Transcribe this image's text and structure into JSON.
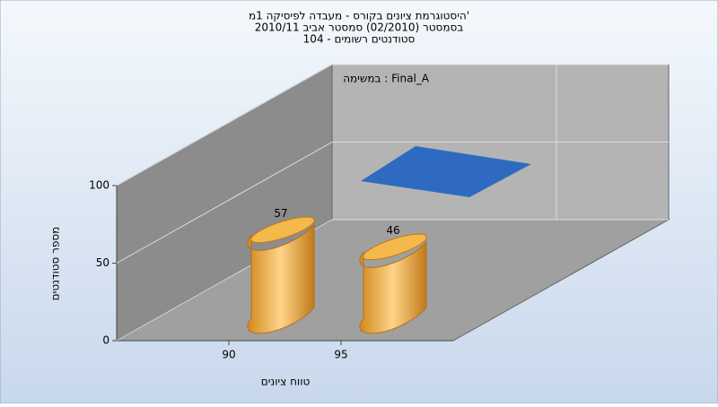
{
  "chart_data": {
    "type": "bar3d",
    "title": [
      "היסטוגרמת ציונים בקורס - מעבדה לפיסיקה 1מ'",
      "בסמסטר (02/2010)  סמסטר אביב 2010/11",
      "סטודנטים רשומים - 104"
    ],
    "annotation": "במשימה : Final_A",
    "x_label": "טווח ציונים",
    "y_label": "מספר סטודנטים",
    "categories": [
      "90",
      "95"
    ],
    "values": [
      57,
      46
    ],
    "color": "#f0a840",
    "ylim": [
      0,
      100
    ],
    "yticks": [
      0,
      50,
      100
    ],
    "grid": true
  }
}
